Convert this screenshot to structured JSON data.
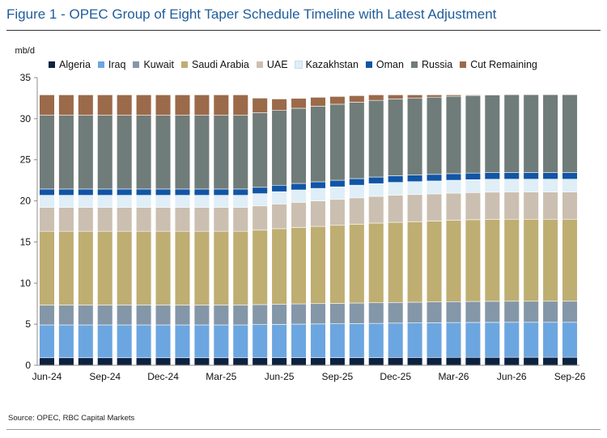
{
  "title": "Figure 1 - OPEC Group of Eight Taper Schedule Timeline with Latest Adjustment",
  "source": "Source: OPEC, RBC Capital Markets",
  "chart_data": {
    "type": "bar",
    "stacked": true,
    "ylabel": "mb/d",
    "ylim": [
      0,
      35
    ],
    "yticks": [
      0,
      5,
      10,
      15,
      20,
      25,
      30,
      35
    ],
    "categories": [
      "Jun-24",
      "Jul-24",
      "Aug-24",
      "Sep-24",
      "Oct-24",
      "Nov-24",
      "Dec-24",
      "Jan-25",
      "Feb-25",
      "Mar-25",
      "Apr-25",
      "May-25",
      "Jun-25",
      "Jul-25",
      "Aug-25",
      "Sep-25",
      "Oct-25",
      "Nov-25",
      "Dec-25",
      "Jan-26",
      "Feb-26",
      "Mar-26",
      "Apr-26",
      "May-26",
      "Jun-26",
      "Jul-26",
      "Aug-26",
      "Sep-26"
    ],
    "xticklabels": [
      "Jun-24",
      "Sep-24",
      "Dec-24",
      "Mar-25",
      "Jun-25",
      "Sep-25",
      "Dec-25",
      "Mar-26",
      "Jun-26",
      "Sep-26"
    ],
    "series": [
      {
        "name": "Algeria",
        "color": "#0d2240",
        "values": [
          0.91,
          0.91,
          0.91,
          0.91,
          0.91,
          0.91,
          0.91,
          0.91,
          0.91,
          0.91,
          0.91,
          0.92,
          0.92,
          0.93,
          0.93,
          0.93,
          0.94,
          0.94,
          0.95,
          0.95,
          0.95,
          0.96,
          0.96,
          0.96,
          0.97,
          0.97,
          0.97,
          0.97
        ]
      },
      {
        "name": "Iraq",
        "color": "#6ca6e0",
        "values": [
          4.0,
          4.0,
          4.0,
          4.0,
          4.0,
          4.0,
          4.0,
          4.0,
          4.0,
          4.0,
          4.0,
          4.03,
          4.05,
          4.08,
          4.1,
          4.12,
          4.14,
          4.16,
          4.18,
          4.2,
          4.22,
          4.24,
          4.25,
          4.26,
          4.26,
          4.26,
          4.26,
          4.26
        ]
      },
      {
        "name": "Kuwait",
        "color": "#8497a8",
        "values": [
          2.41,
          2.41,
          2.41,
          2.41,
          2.41,
          2.41,
          2.41,
          2.41,
          2.41,
          2.41,
          2.41,
          2.43,
          2.45,
          2.46,
          2.47,
          2.48,
          2.49,
          2.5,
          2.51,
          2.52,
          2.53,
          2.54,
          2.55,
          2.56,
          2.56,
          2.56,
          2.56,
          2.56
        ]
      },
      {
        "name": "Saudi Arabia",
        "color": "#bfae72",
        "values": [
          8.98,
          8.98,
          8.98,
          8.98,
          8.98,
          8.98,
          8.98,
          8.98,
          8.98,
          8.98,
          8.98,
          9.06,
          9.2,
          9.3,
          9.4,
          9.5,
          9.6,
          9.7,
          9.75,
          9.8,
          9.85,
          9.9,
          9.95,
          9.98,
          9.98,
          9.98,
          9.98,
          9.98
        ]
      },
      {
        "name": "UAE",
        "color": "#cbbfb1",
        "values": [
          2.91,
          2.91,
          2.91,
          2.91,
          2.91,
          2.91,
          2.91,
          2.91,
          2.91,
          2.91,
          2.91,
          2.95,
          3.0,
          3.05,
          3.1,
          3.15,
          3.2,
          3.25,
          3.3,
          3.3,
          3.3,
          3.3,
          3.3,
          3.3,
          3.3,
          3.3,
          3.3,
          3.3
        ]
      },
      {
        "name": "Kazakhstan",
        "color": "#dfeef7",
        "values": [
          1.47,
          1.47,
          1.47,
          1.47,
          1.47,
          1.47,
          1.47,
          1.47,
          1.47,
          1.47,
          1.47,
          1.49,
          1.5,
          1.51,
          1.52,
          1.53,
          1.54,
          1.55,
          1.56,
          1.57,
          1.57,
          1.57,
          1.57,
          1.57,
          1.57,
          1.57,
          1.57,
          1.57
        ]
      },
      {
        "name": "Oman",
        "color": "#1155a6",
        "values": [
          0.76,
          0.76,
          0.76,
          0.76,
          0.76,
          0.76,
          0.76,
          0.76,
          0.76,
          0.76,
          0.76,
          0.77,
          0.78,
          0.79,
          0.8,
          0.8,
          0.8,
          0.8,
          0.8,
          0.8,
          0.8,
          0.8,
          0.8,
          0.8,
          0.8,
          0.8,
          0.8,
          0.8
        ]
      },
      {
        "name": "Russia",
        "color": "#707c79",
        "values": [
          8.98,
          8.98,
          8.98,
          8.98,
          8.98,
          8.98,
          8.98,
          8.98,
          8.98,
          8.98,
          8.98,
          9.07,
          9.1,
          9.15,
          9.2,
          9.25,
          9.3,
          9.33,
          9.36,
          9.38,
          9.4,
          9.42,
          9.44,
          9.46,
          9.48,
          9.48,
          9.48,
          9.48
        ]
      },
      {
        "name": "Cut Remaining",
        "color": "#9b6a4a",
        "values": [
          2.48,
          2.48,
          2.48,
          2.48,
          2.48,
          2.48,
          2.48,
          2.48,
          2.48,
          2.48,
          2.48,
          1.78,
          1.4,
          1.2,
          1.08,
          0.94,
          0.79,
          0.67,
          0.49,
          0.38,
          0.28,
          0.17,
          0.08,
          0.01,
          0.0,
          0.0,
          0.0,
          0.0
        ]
      }
    ]
  }
}
